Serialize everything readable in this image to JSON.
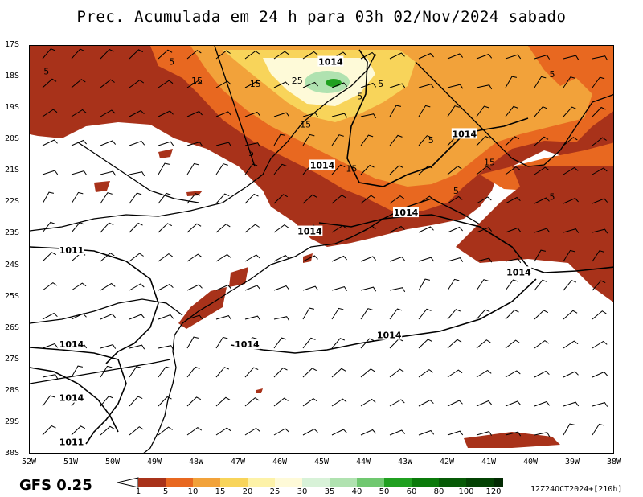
{
  "title": "Prec. Acumulada em 24 h para 03h 02/Nov/2024 sabado",
  "model_label": "GFS 0.25",
  "run_info": "12Z24OCT2024+[210h]",
  "lat_labels": [
    "17S",
    "18S",
    "19S",
    "20S",
    "21S",
    "22S",
    "23S",
    "24S",
    "25S",
    "26S",
    "27S",
    "28S",
    "29S",
    "30S"
  ],
  "lon_labels": [
    "52W",
    "51W",
    "50W",
    "49W",
    "48W",
    "47W",
    "46W",
    "45W",
    "44W",
    "43W",
    "42W",
    "41W",
    "40W",
    "39W",
    "38W"
  ],
  "legend": {
    "levels": [
      "1",
      "5",
      "10",
      "15",
      "20",
      "25",
      "30",
      "35",
      "40",
      "50",
      "60",
      "80",
      "100",
      "120"
    ],
    "colors": [
      "#a8321a",
      "#e86820",
      "#f2a23a",
      "#f8d45a",
      "#fdf2a8",
      "#fefad8",
      "#d8f2d8",
      "#b0e2b0",
      "#70c870",
      "#20a020",
      "#0a7a0a",
      "#065a06",
      "#034203",
      "#022a02"
    ]
  },
  "contour_labels": [
    {
      "text": "1014",
      "lon": -44.8,
      "lat": -17.5
    },
    {
      "text": "1014",
      "lon": -41.6,
      "lat": -19.8
    },
    {
      "text": "1014",
      "lon": -45.0,
      "lat": -20.8
    },
    {
      "text": "1014",
      "lon": -43.0,
      "lat": -22.3
    },
    {
      "text": "1014",
      "lon": -45.3,
      "lat": -22.9
    },
    {
      "text": "1011",
      "lon": -51.0,
      "lat": -23.5
    },
    {
      "text": "1014",
      "lon": -40.3,
      "lat": -24.2
    },
    {
      "text": "1014",
      "lon": -43.4,
      "lat": -26.2
    },
    {
      "text": "1014",
      "lon": -46.8,
      "lat": -26.5
    },
    {
      "text": "1014",
      "lon": -51.0,
      "lat": -26.5
    },
    {
      "text": "1014",
      "lon": -51.0,
      "lat": -28.2
    },
    {
      "text": "1011",
      "lon": -51.0,
      "lat": -29.6
    }
  ],
  "precip_labels": [
    {
      "text": "5",
      "lon": -51.6,
      "lat": -17.8
    },
    {
      "text": "5",
      "lon": -48.6,
      "lat": -17.5
    },
    {
      "text": "15",
      "lon": -48.0,
      "lat": -18.1
    },
    {
      "text": "15",
      "lon": -46.6,
      "lat": -18.2
    },
    {
      "text": "25",
      "lon": -45.6,
      "lat": -18.1
    },
    {
      "text": "5",
      "lon": -43.6,
      "lat": -18.2
    },
    {
      "text": "5",
      "lon": -44.1,
      "lat": -18.6
    },
    {
      "text": "15",
      "lon": -45.4,
      "lat": -19.5
    },
    {
      "text": "5",
      "lon": -39.5,
      "lat": -17.9
    },
    {
      "text": "5",
      "lon": -42.4,
      "lat": -20.0
    },
    {
      "text": "5",
      "lon": -46.7,
      "lat": -20.4
    },
    {
      "text": "15",
      "lon": -44.3,
      "lat": -20.9
    },
    {
      "text": "15",
      "lon": -41.0,
      "lat": -20.7
    },
    {
      "text": "5",
      "lon": -41.8,
      "lat": -21.6
    },
    {
      "text": "5",
      "lon": -39.5,
      "lat": -21.8
    }
  ]
}
